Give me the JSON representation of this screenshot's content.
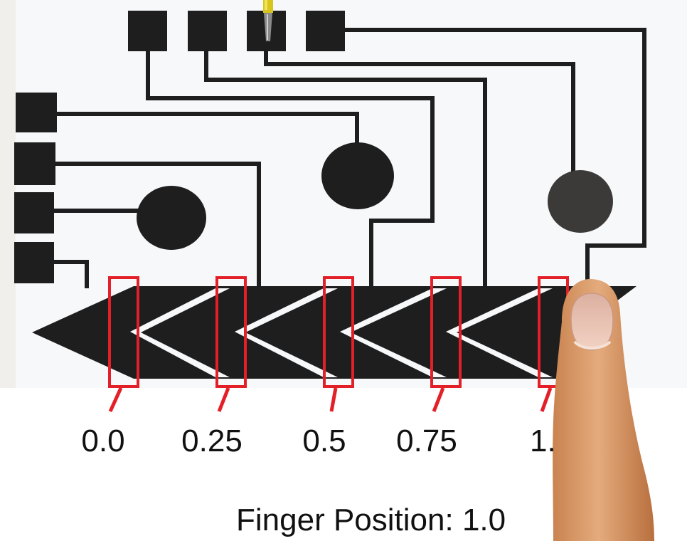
{
  "positions": [
    {
      "label": "0.0",
      "value": 0.0
    },
    {
      "label": "0.25",
      "value": 0.25
    },
    {
      "label": "0.5",
      "value": 0.5
    },
    {
      "label": "0.75",
      "value": 0.75
    },
    {
      "label": "1.",
      "value": 1.0
    }
  ],
  "finger_position": {
    "label": "Finger Position:",
    "value": "1.0"
  },
  "colors": {
    "trace": "#1e1e1e",
    "marker": "#e32028",
    "card": "#f8f9fb",
    "card_edge": "#ccc3a6",
    "finger_skin": "#d99a68",
    "nail": "#e9c3b2",
    "pin": "#d8c51c"
  },
  "icons": {
    "pointer": "finger-icon",
    "pin": "pushpin-icon"
  }
}
